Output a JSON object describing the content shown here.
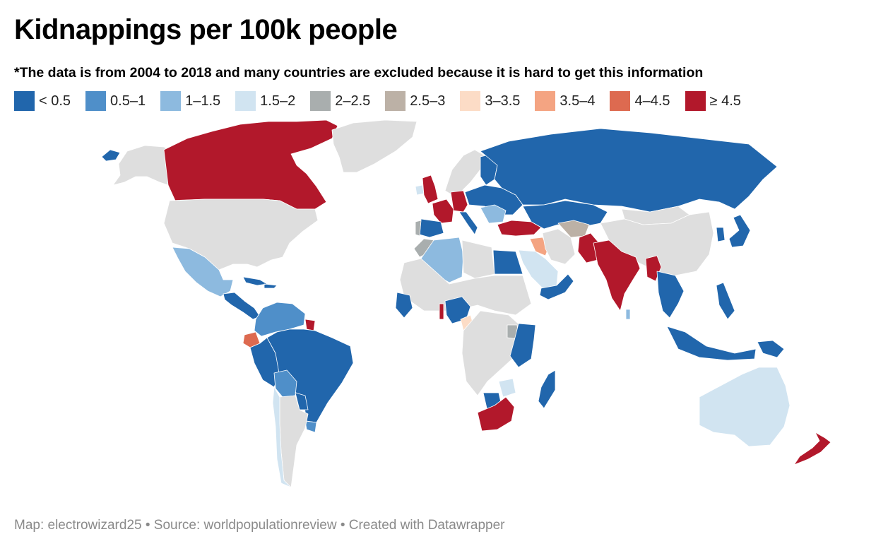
{
  "title": "Kidnappings per 100k people",
  "subtitle": "*The data is from 2004 to 2018 and many countries are excluded because it is hard to get this information",
  "legend": [
    {
      "label": "< 0.5",
      "color": "#2166ac"
    },
    {
      "label": "0.5–1",
      "color": "#4f8fc9"
    },
    {
      "label": "1–1.5",
      "color": "#8dbadf"
    },
    {
      "label": "1.5–2",
      "color": "#d1e4f1"
    },
    {
      "label": "2–2.5",
      "color": "#a9aeae"
    },
    {
      "label": "2.5–3",
      "color": "#bcb1a6"
    },
    {
      "label": "3–3.5",
      "color": "#fcdcc6"
    },
    {
      "label": "3.5–4",
      "color": "#f4a482"
    },
    {
      "label": "4–4.5",
      "color": "#dd6a50"
    },
    {
      "label": "≥ 4.5",
      "color": "#b2182b"
    }
  ],
  "no_data_color": "#dedede",
  "footer": {
    "text": "Map: electrowizard25 • Source: worldpopulationreview • Created with Datawrapper"
  },
  "chart_data": {
    "type": "choropleth",
    "metric": "kidnappings per 100k people",
    "regions": [
      {
        "name": "Canada",
        "bin": "≥ 4.5"
      },
      {
        "name": "Greenland",
        "bin": "no data"
      },
      {
        "name": "United States",
        "bin": "no data"
      },
      {
        "name": "Alaska (US)",
        "bin": "no data"
      },
      {
        "name": "Mexico",
        "bin": "1–1.5"
      },
      {
        "name": "Central America",
        "bin": "< 0.5"
      },
      {
        "name": "Caribbean",
        "bin": "< 0.5"
      },
      {
        "name": "Colombia / Venezuela",
        "bin": "0.5–1"
      },
      {
        "name": "Guiana",
        "bin": "≥ 4.5"
      },
      {
        "name": "Ecuador",
        "bin": "4–4.5"
      },
      {
        "name": "Peru",
        "bin": "< 0.5"
      },
      {
        "name": "Brazil",
        "bin": "< 0.5"
      },
      {
        "name": "Bolivia",
        "bin": "0.5–1"
      },
      {
        "name": "Paraguay",
        "bin": "< 0.5"
      },
      {
        "name": "Uruguay",
        "bin": "0.5–1"
      },
      {
        "name": "Chile",
        "bin": "1.5–2"
      },
      {
        "name": "Argentina",
        "bin": "no data"
      },
      {
        "name": "Iceland",
        "bin": "< 0.5"
      },
      {
        "name": "United Kingdom",
        "bin": "≥ 4.5"
      },
      {
        "name": "Ireland",
        "bin": "1.5–2"
      },
      {
        "name": "France",
        "bin": "≥ 4.5"
      },
      {
        "name": "Germany",
        "bin": "≥ 4.5"
      },
      {
        "name": "Spain",
        "bin": "< 0.5"
      },
      {
        "name": "Portugal",
        "bin": "2–2.5"
      },
      {
        "name": "Italy",
        "bin": "< 0.5"
      },
      {
        "name": "Scandinavia",
        "bin": "no data"
      },
      {
        "name": "Finland",
        "bin": "< 0.5"
      },
      {
        "name": "Eastern Europe",
        "bin": "< 0.5"
      },
      {
        "name": "Balkans",
        "bin": "1–1.5"
      },
      {
        "name": "Russia",
        "bin": "< 0.5"
      },
      {
        "name": "Kazakhstan",
        "bin": "< 0.5"
      },
      {
        "name": "Mongolia",
        "bin": "no data"
      },
      {
        "name": "China",
        "bin": "no data"
      },
      {
        "name": "Japan",
        "bin": "< 0.5"
      },
      {
        "name": "South Korea",
        "bin": "< 0.5"
      },
      {
        "name": "Turkey",
        "bin": "≥ 4.5"
      },
      {
        "name": "Iraq",
        "bin": "3.5–4"
      },
      {
        "name": "Iran",
        "bin": "no data"
      },
      {
        "name": "Afghanistan",
        "bin": "2.5–3"
      },
      {
        "name": "Saudi Arabia",
        "bin": "1.5–2"
      },
      {
        "name": "Yemen / Oman",
        "bin": "< 0.5"
      },
      {
        "name": "Pakistan",
        "bin": "≥ 4.5"
      },
      {
        "name": "India",
        "bin": "≥ 4.5"
      },
      {
        "name": "Myanmar",
        "bin": "≥ 4.5"
      },
      {
        "name": "Southeast Asia",
        "bin": "< 0.5"
      },
      {
        "name": "Philippines",
        "bin": "< 0.5"
      },
      {
        "name": "Indonesia",
        "bin": "< 0.5"
      },
      {
        "name": "Papua New Guinea",
        "bin": "< 0.5"
      },
      {
        "name": "Australia",
        "bin": "1.5–2"
      },
      {
        "name": "New Zealand",
        "bin": "≥ 4.5"
      },
      {
        "name": "Morocco",
        "bin": "2–2.5"
      },
      {
        "name": "Algeria",
        "bin": "1–1.5"
      },
      {
        "name": "Egypt",
        "bin": "< 0.5"
      },
      {
        "name": "West Africa coast",
        "bin": "< 0.5"
      },
      {
        "name": "Togo",
        "bin": "≥ 4.5"
      },
      {
        "name": "Nigeria",
        "bin": "< 0.5"
      },
      {
        "name": "Cameroon",
        "bin": "3–3.5"
      },
      {
        "name": "Uganda",
        "bin": "2–2.5"
      },
      {
        "name": "Kenya / Tanzania",
        "bin": "< 0.5"
      },
      {
        "name": "Zimbabwe",
        "bin": "1.5–2"
      },
      {
        "name": "Botswana",
        "bin": "< 0.5"
      },
      {
        "name": "South Africa",
        "bin": "≥ 4.5"
      },
      {
        "name": "Madagascar",
        "bin": "< 0.5"
      },
      {
        "name": "Sri Lanka",
        "bin": "1–1.5"
      }
    ]
  }
}
